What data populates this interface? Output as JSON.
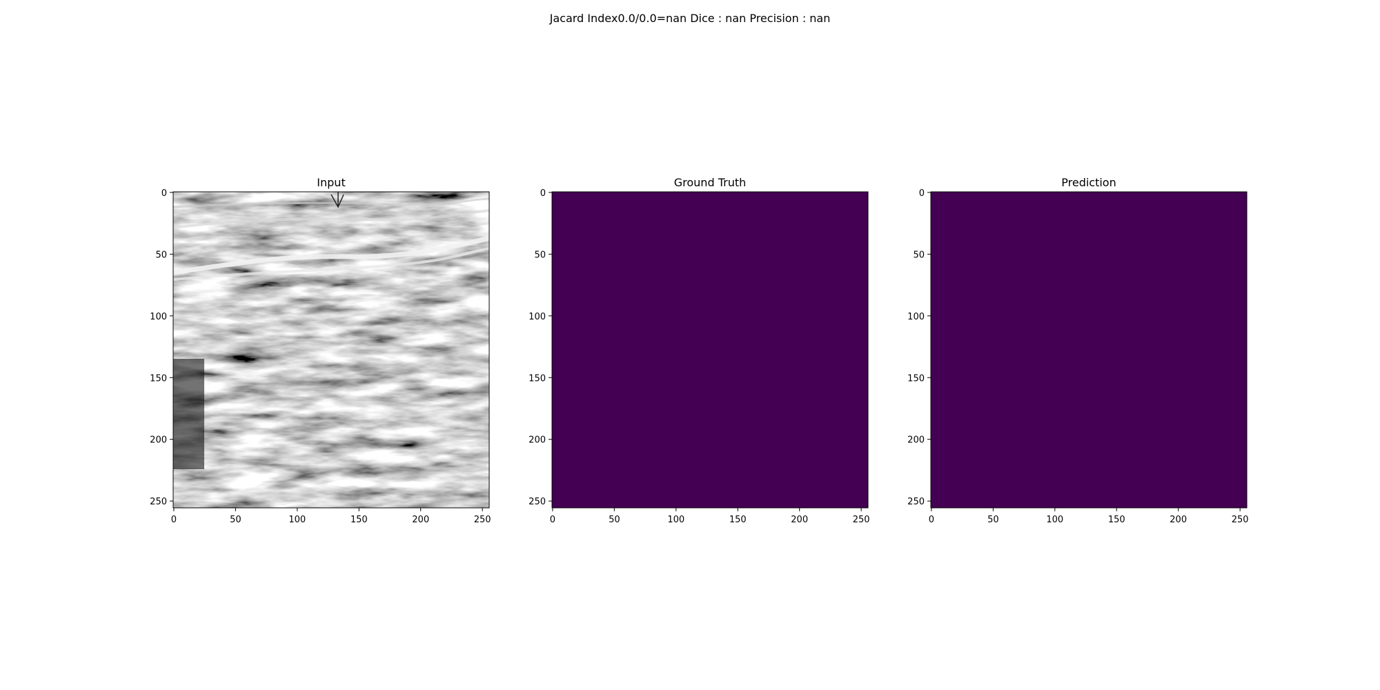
{
  "figure": {
    "suptitle": "Jacard Index0.0/0.0=nan Dice : nan Precision : nan"
  },
  "colors": {
    "mask_fill": "#440154",
    "background": "#ffffff",
    "axis": "#000000"
  },
  "chart_data": [
    {
      "type": "heatmap",
      "title": "Input",
      "image": "grayscale ultrasound scan",
      "xlim": [
        0,
        255
      ],
      "ylim": [
        255,
        0
      ],
      "xticks": [
        0,
        50,
        100,
        150,
        200,
        250
      ],
      "yticks": [
        0,
        50,
        100,
        150,
        200,
        250
      ]
    },
    {
      "type": "heatmap",
      "title": "Ground Truth",
      "image": "uniform mask, all zeros",
      "fill_color": "#440154",
      "xlim": [
        0,
        255
      ],
      "ylim": [
        255,
        0
      ],
      "xticks": [
        0,
        50,
        100,
        150,
        200,
        250
      ],
      "yticks": [
        0,
        50,
        100,
        150,
        200,
        250
      ]
    },
    {
      "type": "heatmap",
      "title": "Prediction",
      "image": "uniform mask, all zeros",
      "fill_color": "#440154",
      "xlim": [
        0,
        255
      ],
      "ylim": [
        255,
        0
      ],
      "xticks": [
        0,
        50,
        100,
        150,
        200,
        250
      ],
      "yticks": [
        0,
        50,
        100,
        150,
        200,
        250
      ]
    }
  ]
}
